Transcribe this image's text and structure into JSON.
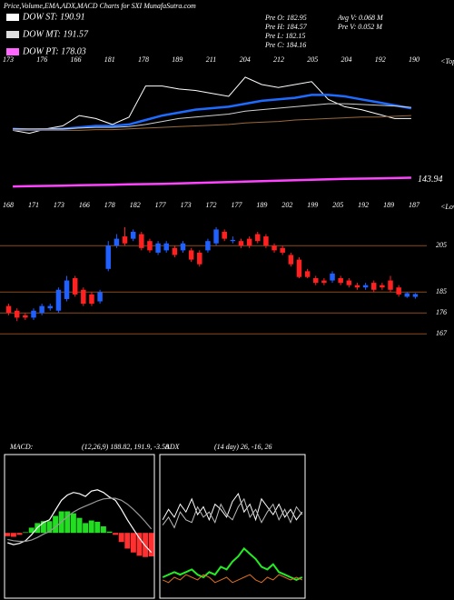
{
  "header": {
    "title": "Price,Volume,EMA,ADX,MACD Charts for SXI MunafaSutra.com",
    "legend": [
      {
        "label": "DOW ST: 190.91",
        "color": "#ffffff"
      },
      {
        "label": "DOW MT: 191.57",
        "color": "#dddddd"
      },
      {
        "label": "DOW PT: 178.03",
        "color": "#ff66ff"
      }
    ],
    "info": [
      "Pre  O: 182.95",
      "Pre  H: 184.57",
      "Pre  L: 182.15",
      "Pre  C: 184.16"
    ],
    "info2": [
      "Avg V: 0.068 M",
      "Pre  V: 0.052 M"
    ]
  },
  "chart_data": [
    {
      "type": "line",
      "corner_label": "<Top",
      "ylim": [
        135,
        215
      ],
      "annotations": [
        173,
        176,
        166,
        181,
        178,
        189,
        211,
        204,
        212,
        205,
        204,
        192,
        190
      ],
      "series": [
        {
          "color": "#ffffff",
          "values": [
            176,
            174,
            177,
            179,
            186,
            184,
            180,
            185,
            206,
            206,
            204,
            203,
            201,
            199,
            212,
            207,
            205,
            207,
            209,
            197,
            192,
            190,
            187,
            184,
            184
          ]
        },
        {
          "color": "#1e6cff",
          "values": [
            177,
            176.5,
            176.6,
            177,
            178,
            179,
            179,
            180,
            183,
            186,
            188,
            190,
            191,
            192,
            194,
            196,
            197,
            198,
            200,
            200,
            199,
            197,
            195,
            193,
            190.91
          ]
        },
        {
          "color": "#cfcfcf",
          "values": [
            177,
            177,
            177,
            177,
            177.5,
            178,
            178,
            178.5,
            180,
            182,
            184,
            185,
            186,
            187,
            189,
            190,
            191,
            192,
            193,
            194,
            194,
            193.5,
            193,
            192.5,
            191.57
          ]
        },
        {
          "color": "#9a6a3a",
          "values": [
            176,
            176,
            176,
            176,
            176,
            176.5,
            176.5,
            177,
            177.5,
            178,
            178.5,
            179,
            179.5,
            180,
            181,
            181.5,
            182,
            183,
            183.5,
            184,
            184.5,
            185,
            185,
            185.5,
            186
          ]
        },
        {
          "color": "#ff44ff",
          "values": [
            138.0,
            138.2,
            138.4,
            138.6,
            138.8,
            139.0,
            139.2,
            139.4,
            139.6,
            139.8,
            140.1,
            140.4,
            140.7,
            141.0,
            141.3,
            141.6,
            141.9,
            142.2,
            142.5,
            142.8,
            143.1,
            143.3,
            143.5,
            143.7,
            143.94
          ]
        }
      ]
    },
    {
      "type": "candlestick",
      "corner_label": "<Low",
      "ylim": [
        162,
        220
      ],
      "yticks": [
        205,
        185,
        176,
        167
      ],
      "grid_color": "#8b4a1c",
      "up_color": "#2060ff",
      "down_color": "#ff2020",
      "annotations": [
        168,
        171,
        173,
        166,
        178,
        182,
        177,
        173,
        172,
        177,
        189,
        202,
        199,
        205,
        192,
        189,
        187
      ],
      "open": [
        179,
        177,
        175,
        174,
        176,
        178,
        177,
        182,
        191,
        186,
        184,
        181,
        195,
        205,
        209,
        208,
        210,
        207,
        202,
        203,
        204,
        203,
        203,
        202,
        203,
        206,
        211,
        207,
        207,
        208,
        210,
        209,
        205,
        204,
        201,
        199,
        194,
        191,
        190,
        190,
        191,
        190,
        188,
        187,
        189,
        188,
        190,
        187,
        183,
        182.95
      ],
      "high": [
        180,
        178,
        176,
        178,
        180,
        180,
        187,
        192,
        192,
        187,
        185,
        186,
        207,
        210,
        213,
        212,
        211,
        208,
        207,
        207,
        205,
        207,
        204,
        203,
        208,
        213,
        212,
        209,
        208,
        209,
        211,
        210,
        206,
        205,
        202,
        200,
        195,
        192,
        191,
        194,
        192,
        191,
        189,
        189,
        190,
        189,
        192,
        188,
        185,
        184.57
      ],
      "low": [
        175,
        172.5,
        173,
        173,
        175,
        177,
        176,
        181,
        183,
        179,
        179,
        180,
        194,
        204,
        205,
        207,
        203,
        202,
        201,
        202,
        200,
        202,
        198,
        196,
        202,
        205,
        207,
        206,
        204,
        204,
        206,
        204,
        202,
        201,
        196,
        191,
        191,
        188,
        188,
        189,
        188,
        187,
        186,
        186,
        185,
        186,
        185,
        183,
        182.5,
        182.15
      ],
      "close": [
        176,
        174,
        174,
        177,
        179,
        179,
        186,
        190,
        184,
        180,
        180,
        185,
        205,
        208,
        206,
        211,
        204,
        203,
        206,
        206,
        201,
        206,
        199,
        197,
        207,
        212,
        208,
        207.5,
        205,
        205,
        207,
        205,
        203,
        202,
        197,
        191.5,
        191.5,
        189,
        189,
        193,
        189,
        188,
        187,
        188,
        186,
        187,
        186,
        184,
        184.5,
        184.16
      ]
    },
    {
      "type": "combo",
      "frame": true,
      "title": "MACD:",
      "subtitle": "(12,26,9) 188.82, 191.9, -3.58",
      "ylim": [
        -10,
        12
      ],
      "series": [
        {
          "kind": "bar",
          "color": "#22dd22",
          "negative_color": "#ff3030",
          "values": [
            -0.5,
            -0.6,
            -0.3,
            0.1,
            0.8,
            1.5,
            1.8,
            1.8,
            2.6,
            3.3,
            3.3,
            3.0,
            2.3,
            1.5,
            1.9,
            1.7,
            1.0,
            0.2,
            -0.3,
            -1.4,
            -2.4,
            -3.0,
            -3.5,
            -3.7,
            -3.6
          ]
        },
        {
          "kind": "line",
          "color": "#ffffff",
          "values": [
            -1.5,
            -1.8,
            -1.6,
            -1.2,
            -0.3,
            0.8,
            1.6,
            2.0,
            3.5,
            5.0,
            5.8,
            6.2,
            6.0,
            5.6,
            6.4,
            6.6,
            6.2,
            5.5,
            5.0,
            3.6,
            2.0,
            0.6,
            -0.8,
            -2.0,
            -3.0
          ]
        },
        {
          "kind": "line",
          "color": "#999999",
          "values": [
            -1.0,
            -1.2,
            -1.3,
            -1.3,
            -1.1,
            -0.7,
            -0.2,
            0.2,
            0.9,
            1.7,
            2.5,
            3.2,
            3.7,
            4.1,
            4.5,
            4.9,
            5.2,
            5.3,
            5.3,
            5.0,
            4.4,
            3.6,
            2.7,
            1.7,
            0.6
          ]
        }
      ]
    },
    {
      "type": "line",
      "frame": true,
      "title": "ADX",
      "subtitle": "(14 day)   26,  -16,  26",
      "ylim": [
        0,
        55
      ],
      "series": [
        {
          "color": "#ffffff",
          "values": [
            30,
            34,
            31,
            36,
            33,
            38,
            32,
            35,
            30,
            36,
            34,
            31,
            37,
            40,
            33,
            36,
            30,
            38,
            35,
            32,
            36,
            31,
            34,
            30,
            33
          ]
        },
        {
          "color": "#bbbbbb",
          "values": [
            28,
            31,
            27,
            33,
            30,
            29,
            35,
            31,
            33,
            29,
            36,
            32,
            30,
            35,
            38,
            31,
            34,
            29,
            33,
            36,
            30,
            34,
            29,
            35,
            32
          ]
        },
        {
          "color": "#22ee22",
          "values": [
            8,
            9,
            10,
            9,
            10,
            11,
            9,
            8,
            10,
            9,
            12,
            11,
            14,
            16,
            19,
            17,
            15,
            12,
            11,
            13,
            10,
            9,
            8,
            7,
            8
          ]
        },
        {
          "color": "#e07020",
          "values": [
            7,
            6,
            8,
            7,
            9,
            8,
            7,
            9,
            8,
            6,
            7,
            8,
            6,
            7,
            8,
            9,
            7,
            6,
            8,
            7,
            9,
            8,
            7,
            8,
            7
          ]
        }
      ]
    }
  ]
}
